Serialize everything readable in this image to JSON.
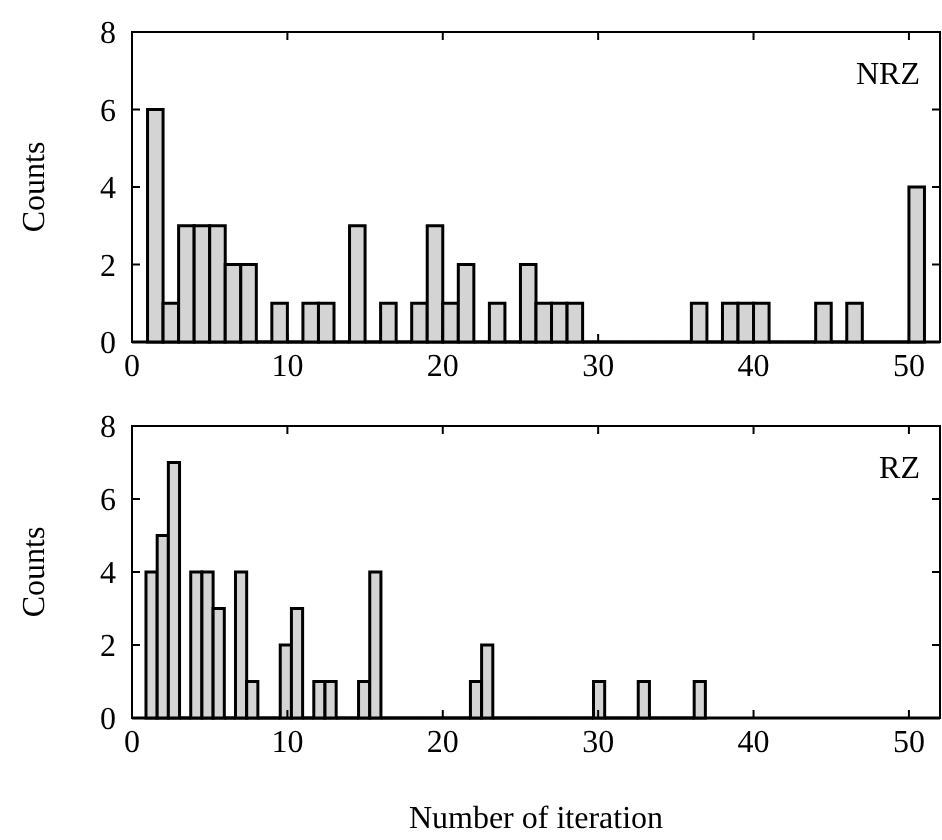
{
  "chart_data": [
    {
      "type": "histogram",
      "title": "NRZ",
      "ylabel": "Counts",
      "color": "#d4d4d4",
      "bins": [
        1,
        2,
        3,
        4,
        5,
        6,
        7,
        8,
        9,
        10,
        11,
        12,
        13,
        14,
        15,
        16,
        17,
        18,
        19,
        20,
        21,
        22,
        23,
        24,
        25,
        26,
        27,
        28,
        29,
        30,
        31,
        32,
        33,
        34,
        35,
        36,
        37,
        38,
        39,
        40,
        41,
        42,
        43,
        44,
        45,
        46,
        47,
        48,
        49,
        50,
        51
      ],
      "values": [
        6,
        1,
        3,
        3,
        3,
        2,
        2,
        0,
        1,
        0,
        1,
        1,
        0,
        3,
        0,
        1,
        0,
        1,
        3,
        1,
        2,
        0,
        1,
        0,
        2,
        1,
        1,
        1,
        0,
        0,
        0,
        0,
        0,
        0,
        0,
        1,
        0,
        1,
        1,
        1,
        0,
        0,
        0,
        1,
        0,
        1,
        0,
        0,
        0,
        4
      ],
      "xlim": [
        0,
        52
      ],
      "ylim": [
        0,
        8
      ],
      "xticks": [
        0,
        10,
        20,
        30,
        40,
        50
      ],
      "yticks": [
        0,
        2,
        4,
        6,
        8
      ]
    },
    {
      "type": "histogram",
      "title": "RZ",
      "ylabel": "Counts",
      "xlabel": "Number of iteration",
      "color": "#d4d4d4",
      "bins": [
        0.9,
        1.62,
        2.34,
        3.06,
        3.78,
        4.5,
        5.22,
        5.94,
        6.66,
        7.38,
        8.1,
        8.82,
        9.54,
        10.26,
        10.98,
        11.7,
        12.42,
        13.14,
        13.86,
        14.58,
        15.3,
        16.02,
        16.74,
        17.46,
        18.18,
        18.9,
        19.62,
        20.34,
        21.06,
        21.78,
        22.5,
        23.22,
        23.94,
        24.66,
        25.38,
        26.1,
        26.82,
        27.54,
        28.26,
        28.98,
        29.7,
        30.42,
        31.14,
        31.86,
        32.58,
        33.3,
        34.02,
        34.74,
        35.46,
        36.18,
        36.9
      ],
      "values": [
        4,
        5,
        7,
        0,
        4,
        4,
        3,
        0,
        4,
        1,
        0,
        0,
        2,
        3,
        0,
        1,
        1,
        0,
        0,
        1,
        4,
        0,
        0,
        0,
        0,
        0,
        0,
        0,
        0,
        1,
        2,
        0,
        0,
        0,
        0,
        0,
        0,
        0,
        0,
        0,
        1,
        0,
        0,
        0,
        1,
        0,
        0,
        0,
        0,
        1
      ],
      "xlim": [
        0,
        52
      ],
      "ylim": [
        0,
        8
      ],
      "xticks": [
        0,
        10,
        20,
        30,
        40,
        50
      ],
      "yticks": [
        0,
        2,
        4,
        6,
        8
      ]
    }
  ]
}
